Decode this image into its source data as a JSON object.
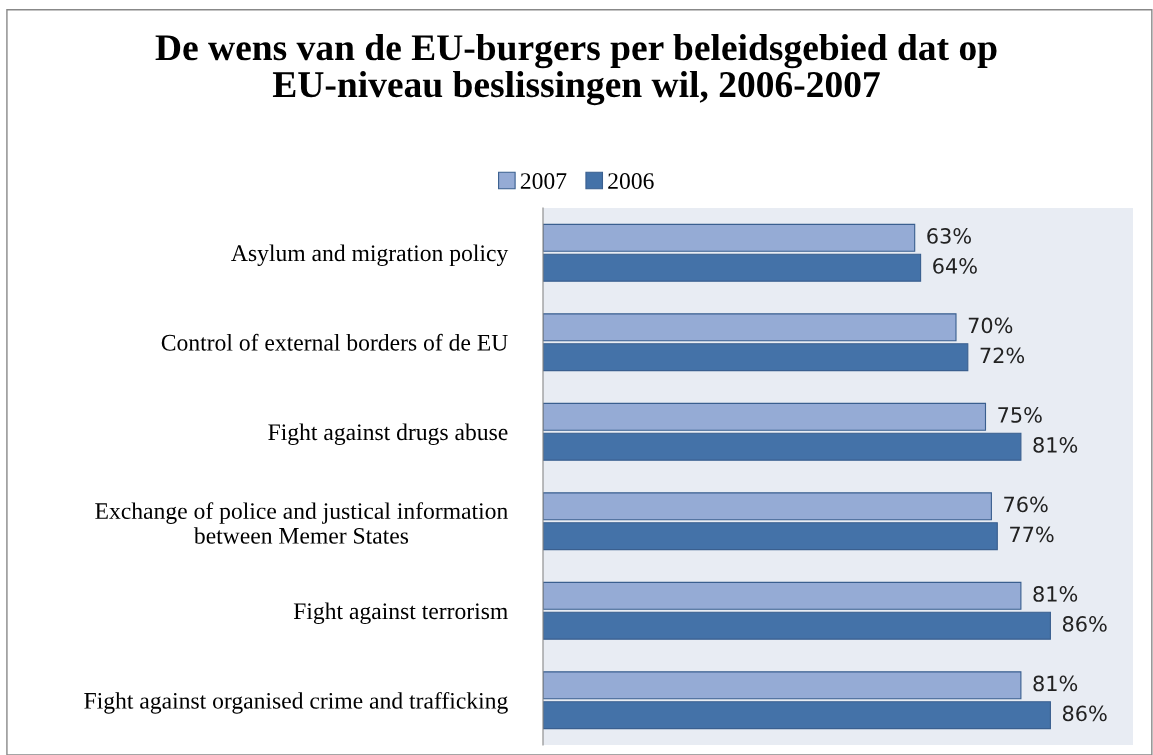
{
  "chart_data": {
    "type": "bar",
    "orientation": "horizontal",
    "title": "De wens van de EU-burgers per beleidsgebied dat op\nEU-niveau beslissingen wil, 2006-2007",
    "categories": [
      "Asylum and migration policy",
      "Control of external borders of de EU",
      "Fight against drugs abuse",
      "Exchange of police and justical information\nbetween Memer States",
      "Fight against terrorism",
      "Fight against organised crime and trafficking"
    ],
    "series": [
      {
        "name": "2007",
        "color": "#95abd5",
        "values": [
          63,
          70,
          75,
          76,
          81,
          81
        ],
        "value_labels": [
          "63%",
          "70%",
          "75%",
          "76%",
          "81%",
          "81%"
        ]
      },
      {
        "name": "2006",
        "color": "#4472a8",
        "values": [
          64,
          72,
          81,
          77,
          86,
          86
        ],
        "value_labels": [
          "64%",
          "72%",
          "81%",
          "77%",
          "86%",
          "86%"
        ]
      }
    ],
    "xlim": [
      0,
      100
    ],
    "tick_labels": "y",
    "legend": "top",
    "grid": false
  }
}
